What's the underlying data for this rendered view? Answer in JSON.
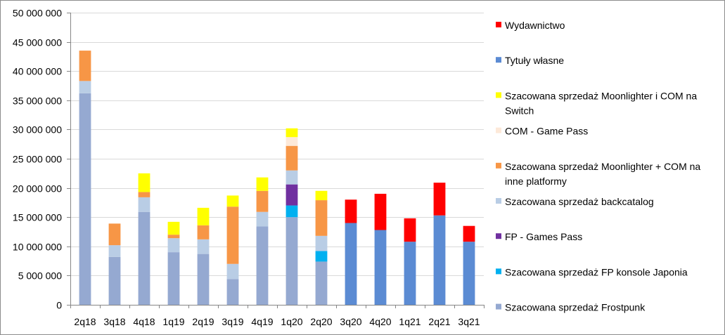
{
  "chart_data": {
    "type": "bar",
    "stacked": true,
    "categories": [
      "2q18",
      "3q18",
      "4q18",
      "1q19",
      "2q19",
      "3q19",
      "4q19",
      "1q20",
      "2q20",
      "3q20",
      "4q20",
      "1q21",
      "2q21",
      "3q21"
    ],
    "ylim": [
      0,
      50000000
    ],
    "yticks": [
      {
        "value": 0,
        "label": "0"
      },
      {
        "value": 5000000,
        "label": "5 000 000"
      },
      {
        "value": 10000000,
        "label": "10 000 000"
      },
      {
        "value": 15000000,
        "label": "15 000 000"
      },
      {
        "value": 20000000,
        "label": "20 000 000"
      },
      {
        "value": 25000000,
        "label": "25 000 000"
      },
      {
        "value": 30000000,
        "label": "30 000 000"
      },
      {
        "value": 35000000,
        "label": "35 000 000"
      },
      {
        "value": 40000000,
        "label": "40 000 000"
      },
      {
        "value": 45000000,
        "label": "45 000 000"
      },
      {
        "value": 50000000,
        "label": "50 000 000"
      }
    ],
    "gridlines": true,
    "legend_position": "right",
    "series": [
      {
        "name": "Szacowana sprzedaż Frostpunk",
        "color": "#95a9d1",
        "values": [
          36200000,
          8200000,
          15900000,
          9000000,
          8700000,
          4400000,
          13400000,
          15000000,
          7400000,
          0,
          0,
          0,
          0,
          0
        ]
      },
      {
        "name": "Szacowana sprzedaż FP konsole Japonia",
        "color": "#00b0f0",
        "values": [
          0,
          0,
          0,
          0,
          0,
          0,
          0,
          2000000,
          1800000,
          0,
          0,
          0,
          0,
          0
        ]
      },
      {
        "name": "FP - Games Pass",
        "color": "#7030a0",
        "values": [
          0,
          0,
          0,
          0,
          0,
          0,
          0,
          3600000,
          0,
          0,
          0,
          0,
          0,
          0
        ]
      },
      {
        "name": "Szacowana sprzedaż backcatalog",
        "color": "#b9cde5",
        "values": [
          2100000,
          2000000,
          2500000,
          2400000,
          2500000,
          2600000,
          2500000,
          2400000,
          2600000,
          0,
          0,
          0,
          0,
          0
        ]
      },
      {
        "name": "Szacowana sprzedaż Moonlighter + COM na inne platformy",
        "color": "#f79646",
        "values": [
          5200000,
          3700000,
          900000,
          600000,
          2400000,
          9800000,
          3600000,
          4200000,
          6100000,
          0,
          0,
          0,
          0,
          0
        ]
      },
      {
        "name": "COM - Game Pass",
        "color": "#fde9d9",
        "values": [
          0,
          0,
          0,
          0,
          0,
          0,
          0,
          1500000,
          0,
          0,
          0,
          0,
          0,
          0
        ]
      },
      {
        "name": "Szacowana sprzedaż Moonlighter i COM na Switch",
        "color": "#ffff00",
        "values": [
          0,
          0,
          3200000,
          2200000,
          3000000,
          1900000,
          2300000,
          1500000,
          1600000,
          0,
          0,
          0,
          0,
          0
        ]
      },
      {
        "name": "Tytuły własne",
        "color": "#5b8bd3",
        "values": [
          0,
          0,
          0,
          0,
          0,
          0,
          0,
          0,
          0,
          14000000,
          12800000,
          10800000,
          15300000,
          10800000
        ]
      },
      {
        "name": "Wydawnictwo",
        "color": "#ff0000",
        "values": [
          0,
          0,
          0,
          0,
          0,
          0,
          0,
          0,
          0,
          4000000,
          6200000,
          4000000,
          5600000,
          2700000
        ]
      }
    ],
    "legend_entries": [
      {
        "lines": [
          "Wydawnictwo"
        ],
        "color": "#ff0000"
      },
      {
        "lines": [
          "Tytuły własne"
        ],
        "color": "#5b8bd3"
      },
      {
        "lines": [
          "Szacowana sprzedaż Moonlighter i COM na",
          "Switch"
        ],
        "color": "#ffff00"
      },
      {
        "lines": [
          "COM - Game Pass"
        ],
        "color": "#fde9d9"
      },
      {
        "lines": [
          "Szacowana sprzedaż Moonlighter + COM na",
          "inne platformy"
        ],
        "color": "#f79646"
      },
      {
        "lines": [
          "Szacowana sprzedaż backcatalog"
        ],
        "color": "#b9cde5"
      },
      {
        "lines": [
          "FP - Games Pass"
        ],
        "color": "#7030a0"
      },
      {
        "lines": [
          "Szacowana sprzedaż FP konsole Japonia"
        ],
        "color": "#00b0f0"
      },
      {
        "lines": [
          "Szacowana sprzedaż Frostpunk"
        ],
        "color": "#95a9d1"
      }
    ]
  }
}
